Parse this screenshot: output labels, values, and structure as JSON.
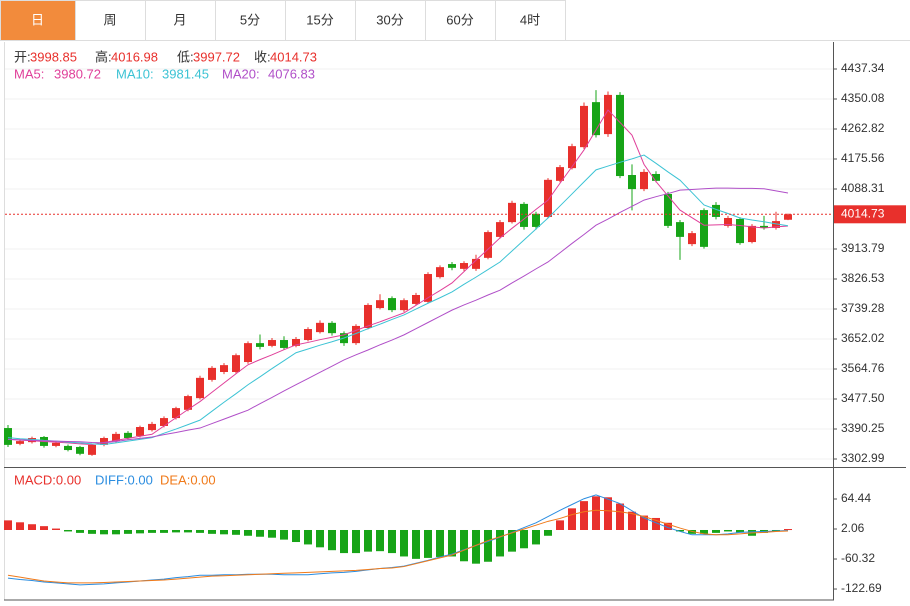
{
  "chart_data": {
    "type": "candlestick",
    "tabs": [
      "日",
      "周",
      "月",
      "5分",
      "15分",
      "30分",
      "60分",
      "4时"
    ],
    "active_tab": 0,
    "ohlc_labels": [
      "开:",
      "高:",
      "低:",
      "收:"
    ],
    "up_color": "#e8302c",
    "down_color": "#17a417",
    "open": [
      3393,
      3347,
      3352,
      3367,
      3341,
      3341,
      3338,
      3315,
      3344,
      3355,
      3379,
      3370,
      3387,
      3399,
      3422,
      3446,
      3480,
      3533,
      3556,
      3556,
      3585,
      3640,
      3632,
      3649,
      3632,
      3649,
      3672,
      3699,
      3669,
      3640,
      3684,
      3742,
      3771,
      3736,
      3754,
      3760,
      3832,
      3870,
      3856,
      3856,
      3888,
      3949,
      3992,
      4045,
      4016,
      4007,
      4112,
      4149,
      4210,
      4341,
      4248,
      4362,
      4129,
      4088,
      4132,
      4074,
      3992,
      3928,
      4027,
      4042,
      3981,
      4001,
      3934,
      3981,
      3975,
      3998.85
    ],
    "high": [
      3402,
      3360,
      3368,
      3370,
      3354,
      3345,
      3341,
      3348,
      3368,
      3382,
      3384,
      3400,
      3411,
      3427,
      3455,
      3490,
      3545,
      3573,
      3582,
      3610,
      3645,
      3665,
      3655,
      3660,
      3658,
      3686,
      3706,
      3704,
      3674,
      3695,
      3756,
      3782,
      3776,
      3770,
      3786,
      3846,
      3866,
      3876,
      3878,
      3897,
      3968,
      3998,
      4054,
      4050,
      4022,
      4120,
      4158,
      4220,
      4340,
      4376,
      4372,
      4370,
      4160,
      4146,
      4140,
      4080,
      3998,
      3966,
      4032,
      4050,
      4010,
      4006,
      3986,
      4010,
      4022,
      4016.98
    ],
    "low": [
      3338,
      3343,
      3348,
      3336,
      3337,
      3325,
      3314,
      3312,
      3340,
      3350,
      3360,
      3366,
      3383,
      3395,
      3418,
      3442,
      3476,
      3528,
      3550,
      3552,
      3580,
      3622,
      3628,
      3620,
      3628,
      3645,
      3668,
      3662,
      3632,
      3635,
      3680,
      3738,
      3730,
      3731,
      3750,
      3756,
      3828,
      3852,
      3850,
      3850,
      3884,
      3944,
      3988,
      3970,
      3970,
      4003,
      4108,
      4145,
      4205,
      4238,
      4240,
      4120,
      4026,
      4082,
      4108,
      3975,
      3882,
      3922,
      3915,
      4000,
      3976,
      3926,
      3930,
      3970,
      3970,
      3997.72
    ],
    "close": [
      3344,
      3355,
      3364,
      3341,
      3350,
      3329,
      3318,
      3344,
      3364,
      3376,
      3364,
      3396,
      3405,
      3422,
      3451,
      3486,
      3539,
      3568,
      3576,
      3605,
      3640,
      3629,
      3649,
      3626,
      3652,
      3681,
      3699,
      3669,
      3640,
      3690,
      3751,
      3765,
      3736,
      3765,
      3780,
      3841,
      3861,
      3859,
      3873,
      3885,
      3963,
      3992,
      4048,
      3978,
      3978,
      4115,
      4152,
      4213,
      4330,
      4245,
      4362,
      4126,
      4088,
      4138,
      4112,
      3981,
      3949,
      3960,
      3920,
      4007,
      4004,
      3931,
      3981,
      3975,
      3995,
      4014.73
    ],
    "series": [
      {
        "name": "MA5: ",
        "color": "#e0409a",
        "values": [
          3360,
          3358,
          3356,
          3354,
          3352,
          3350,
          3347,
          3345,
          3351,
          3357,
          3363,
          3369,
          3375,
          3399,
          3423,
          3447,
          3470,
          3497,
          3524,
          3551,
          3577,
          3592,
          3606,
          3621,
          3635,
          3642,
          3650,
          3657,
          3664,
          3677,
          3690,
          3702,
          3715,
          3728,
          3750,
          3772,
          3793,
          3815,
          3848,
          3881,
          3913,
          3946,
          3974,
          4001,
          4029,
          4056,
          4105,
          4153,
          4202,
          4260,
          4318,
          4282,
          4245,
          4160,
          4110,
          4068,
          4027,
          4005,
          3983,
          3984,
          3985,
          3982,
          3978,
          3975,
          3978,
          3980.72
        ]
      },
      {
        "name": "MA10: ",
        "color": "#3cc3d4",
        "values": [
          3365,
          3362,
          3360,
          3357,
          3355,
          3352,
          3350,
          3347,
          3345,
          3350,
          3355,
          3360,
          3365,
          3378,
          3390,
          3403,
          3416,
          3442,
          3468,
          3493,
          3519,
          3542,
          3566,
          3589,
          3612,
          3623,
          3634,
          3644,
          3655,
          3668,
          3682,
          3695,
          3709,
          3722,
          3739,
          3756,
          3772,
          3789,
          3811,
          3832,
          3854,
          3876,
          3908,
          3940,
          3972,
          4004,
          4039,
          4074,
          4109,
          4144,
          4155,
          4166,
          4176,
          4187,
          4163,
          4138,
          4114,
          4078,
          4042,
          4029,
          4017,
          4004,
          3998,
          3993,
          3987,
          3981.45
        ]
      },
      {
        "name": "MA20: ",
        "color": "#b04fc8",
        "values": [
          3360,
          3359,
          3357,
          3356,
          3355,
          3354,
          3353,
          3351,
          3350,
          3354,
          3359,
          3363,
          3367,
          3374,
          3380,
          3387,
          3393,
          3406,
          3419,
          3432,
          3445,
          3464,
          3482,
          3501,
          3519,
          3537,
          3555,
          3573,
          3591,
          3606,
          3620,
          3635,
          3649,
          3664,
          3682,
          3700,
          3718,
          3736,
          3751,
          3765,
          3780,
          3794,
          3815,
          3835,
          3856,
          3876,
          3903,
          3930,
          3956,
          3983,
          4001,
          4020,
          4038,
          4056,
          4066,
          4075,
          4085,
          4087,
          4089,
          4091,
          4091,
          4090,
          4090,
          4089,
          4083,
          4076.83
        ]
      }
    ],
    "ylim": [
      3285.5,
      4515.9
    ],
    "yticks": [
      4437.34,
      4350.08,
      4262.82,
      4175.56,
      4088.31,
      3913.79,
      3826.53,
      3739.28,
      3652.02,
      3564.76,
      {
        "value": 3477.5,
        "label": "3477.50"
      },
      3390.25,
      3302.99
    ],
    "macd": {
      "type": "macd",
      "legend": [
        {
          "text": "MACD:0.00",
          "color": "#e8302c"
        },
        {
          "text": "DIFF:0.00",
          "color": "#2b8de0"
        },
        {
          "text": "DEA:0.00",
          "color": "#f07a1a"
        }
      ],
      "hist": [
        20,
        16,
        12,
        8,
        3,
        -3,
        -6,
        -8,
        -9,
        -9,
        -8,
        -7,
        -6,
        -6,
        -5,
        -5,
        -6,
        -8,
        -9,
        -10,
        -12,
        -14,
        -16,
        -20,
        -25,
        -30,
        -36,
        -42,
        -48,
        -48,
        -45,
        -44,
        -48,
        -55,
        -60,
        -58,
        -56,
        -55,
        -65,
        -70,
        -66,
        -55,
        -45,
        -38,
        -30,
        -12,
        20,
        45,
        60,
        70,
        68,
        55,
        38,
        30,
        25,
        15,
        -3,
        -8,
        -8,
        -6,
        -3,
        -5,
        -12,
        -6,
        -3,
        2
      ],
      "series": [
        {
          "color": "#2b8de0",
          "values": [
            -100,
            -103,
            -105,
            -108,
            -110,
            -112,
            -114,
            -113,
            -112,
            -110,
            -108,
            -106,
            -104,
            -102,
            -99,
            -97,
            -94,
            -94,
            -93,
            -93,
            -92,
            -92,
            -92,
            -93,
            -93,
            -93,
            -91,
            -89,
            -88,
            -86,
            -83,
            -80,
            -78,
            -75,
            -69,
            -63,
            -56,
            -50,
            -41,
            -32,
            -24,
            -15,
            -5,
            5,
            15,
            28,
            41,
            53,
            65,
            73,
            64,
            55,
            40,
            25,
            15,
            5,
            -3,
            -10,
            -10,
            -10,
            -8,
            -5,
            -4,
            -3,
            -2,
            -1
          ]
        },
        {
          "color": "#f07a1a",
          "values": [
            -94,
            -98,
            -102,
            -106,
            -108,
            -110,
            -110,
            -110,
            -109,
            -108,
            -107,
            -106,
            -105,
            -104,
            -102,
            -100,
            -98,
            -96,
            -95,
            -94,
            -93,
            -92,
            -91,
            -90,
            -89,
            -88,
            -87,
            -86,
            -85,
            -84,
            -82,
            -80,
            -79,
            -76,
            -70,
            -64,
            -58,
            -52,
            -42,
            -32,
            -22,
            -14,
            -6,
            2,
            10,
            18,
            24,
            32,
            38,
            41,
            40,
            38,
            34,
            28,
            20,
            12,
            4,
            -3,
            -8,
            -10,
            -10,
            -8,
            -6,
            -5,
            -3,
            -2
          ]
        }
      ],
      "ylim": [
        -145.5,
        124.7
      ],
      "yticks": [
        64.44,
        2.06,
        -60.32,
        -122.69
      ]
    }
  }
}
